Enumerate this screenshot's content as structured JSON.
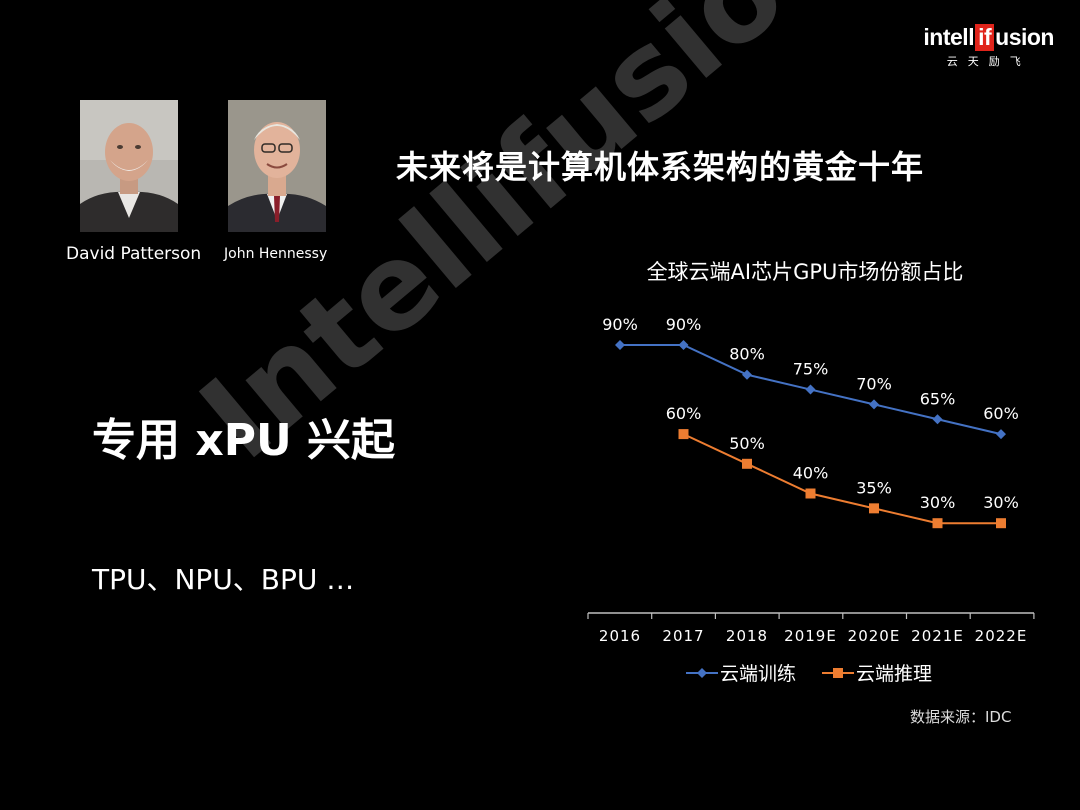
{
  "logo": {
    "pre": "intell",
    "box": "if",
    "post": "usion",
    "sub": "云天励飞"
  },
  "people": [
    {
      "name": "David Patterson"
    },
    {
      "name": "John Hennessy"
    }
  ],
  "headline": "未来将是计算机体系架构的黄金十年",
  "big_title": "专用 xPU 兴起",
  "xpu_list": "TPU、NPU、BPU …",
  "watermark": "Intellifusion",
  "source": "数据来源：IDC",
  "colors": {
    "training": "#4472c4",
    "inference": "#ed7d31",
    "axis": "#bfbfbf"
  },
  "chart_data": {
    "type": "line",
    "title": "全球云端AI芯片GPU市场份额占比",
    "categories": [
      "2016",
      "2017",
      "2018",
      "2019E",
      "2020E",
      "2021E",
      "2022E"
    ],
    "series": [
      {
        "name": "云端训练",
        "marker": "diamond",
        "values": [
          90,
          90,
          80,
          75,
          70,
          65,
          60
        ],
        "labels": [
          "90%",
          "90%",
          "80%",
          "75%",
          "70%",
          "65%",
          "60%"
        ]
      },
      {
        "name": "云端推理",
        "marker": "square",
        "values": [
          null,
          60,
          50,
          40,
          35,
          30,
          30
        ],
        "labels": [
          "",
          "60%",
          "50%",
          "40%",
          "35%",
          "30%",
          "30%"
        ]
      }
    ],
    "legend_position": "bottom",
    "grid": false
  }
}
